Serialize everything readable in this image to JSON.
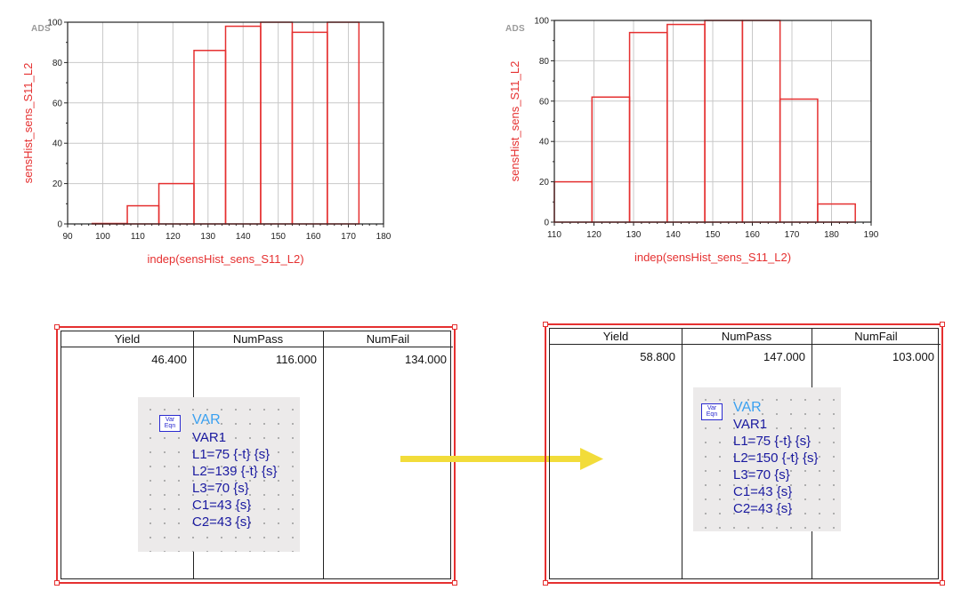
{
  "chart_data": [
    {
      "type": "bar",
      "logo": "ADS",
      "title": "",
      "xlabel": "indep(sensHist_sens_S11_L2)",
      "ylabel": "sensHist_sens_S11_L2",
      "xlim": [
        90,
        180
      ],
      "ylim": [
        0,
        100
      ],
      "x_ticks": [
        "90",
        "100",
        "110",
        "120",
        "130",
        "140",
        "150",
        "160",
        "170",
        "180"
      ],
      "y_ticks": [
        "0",
        "20",
        "40",
        "60",
        "80",
        "100"
      ],
      "bins": [
        {
          "x0": 97,
          "x1": 107,
          "value": 0
        },
        {
          "x0": 107,
          "x1": 116,
          "value": 9
        },
        {
          "x0": 116,
          "x1": 126,
          "value": 20
        },
        {
          "x0": 126,
          "x1": 135,
          "value": 86
        },
        {
          "x0": 135,
          "x1": 145,
          "value": 98
        },
        {
          "x0": 145,
          "x1": 154,
          "value": 100
        },
        {
          "x0": 154,
          "x1": 164,
          "value": 95
        },
        {
          "x0": 164,
          "x1": 173,
          "value": 100
        }
      ]
    },
    {
      "type": "bar",
      "logo": "ADS",
      "title": "",
      "xlabel": "indep(sensHist_sens_S11_L2)",
      "ylabel": "sensHist_sens_S11_L2",
      "xlim": [
        110,
        190
      ],
      "ylim": [
        0,
        100
      ],
      "x_ticks": [
        "110",
        "120",
        "130",
        "140",
        "150",
        "160",
        "170",
        "180",
        "190"
      ],
      "y_ticks": [
        "0",
        "20",
        "40",
        "60",
        "80",
        "100"
      ],
      "bins": [
        {
          "x0": 110,
          "x1": 119.5,
          "value": 20
        },
        {
          "x0": 119.5,
          "x1": 129,
          "value": 62
        },
        {
          "x0": 129,
          "x1": 138.5,
          "value": 94
        },
        {
          "x0": 138.5,
          "x1": 148,
          "value": 98
        },
        {
          "x0": 148,
          "x1": 157.5,
          "value": 100
        },
        {
          "x0": 157.5,
          "x1": 167,
          "value": 100
        },
        {
          "x0": 167,
          "x1": 176.5,
          "value": 61
        },
        {
          "x0": 176.5,
          "x1": 186,
          "value": 9
        }
      ]
    }
  ],
  "tables": [
    {
      "headers": [
        "Yield",
        "NumPass",
        "NumFail"
      ],
      "values": [
        "46.400",
        "116.000",
        "134.000"
      ],
      "var_block": {
        "icon_top": "Var",
        "icon_bottom": "Eqn",
        "title": "VAR",
        "lines": [
          "VAR1",
          "L1=75 {-t} {s}",
          "L2=139 {-t} {s}",
          "L3=70 {s}",
          "C1=43 {s}",
          "C2=43 {s}"
        ]
      }
    },
    {
      "headers": [
        "Yield",
        "NumPass",
        "NumFail"
      ],
      "values": [
        "58.800",
        "147.000",
        "103.000"
      ],
      "var_block": {
        "icon_top": "Var",
        "icon_bottom": "Eqn",
        "title": "VAR",
        "lines": [
          "VAR1",
          "L1=75 {-t} {s}",
          "L2=150 {-t} {s}",
          "L3=70 {s}",
          "C1=43 {s}",
          "C2=43 {s}"
        ]
      }
    }
  ],
  "colors": {
    "plot_red": "#e53030",
    "grid": "#c8c8c8",
    "arrow": "#f2dc3a",
    "var_blue": "#1a1aa0",
    "var_title_blue": "#3aa0f0"
  }
}
